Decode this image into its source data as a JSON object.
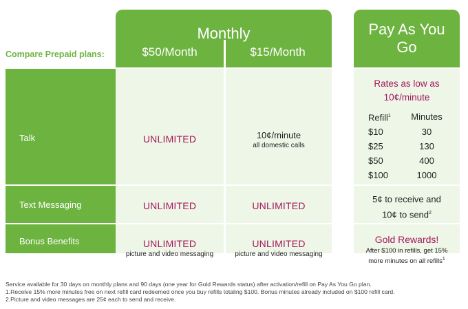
{
  "header": {
    "compare_label": "Compare Prepaid plans:",
    "monthly_title": "Monthly",
    "col_50": "$50/Month",
    "col_15": "$15/Month",
    "payg_title": "Pay As You Go"
  },
  "rows": {
    "talk": "Talk",
    "text": "Text Messaging",
    "bonus": "Bonus Benefits"
  },
  "plan50": {
    "talk": "UNLIMITED",
    "text": "UNLIMITED",
    "bonus": "UNLIMITED",
    "bonus_note": "picture and video messaging"
  },
  "plan15": {
    "talk_rate": "10¢/minute",
    "talk_note": "all domestic calls",
    "text": "UNLIMITED",
    "bonus": "UNLIMITED",
    "bonus_note": "picture and video messaging"
  },
  "payg": {
    "rates_line1": "Rates as low as",
    "rates_line2": "10¢/minute",
    "refill_header": "Refill",
    "refill_sup": "1",
    "minutes_header": "Minutes",
    "rates": [
      {
        "refill": "$10",
        "minutes": "30"
      },
      {
        "refill": "$25",
        "minutes": "130"
      },
      {
        "refill": "$50",
        "minutes": "400"
      },
      {
        "refill": "$100",
        "minutes": "1000"
      }
    ],
    "text_line1": "5¢ to receive and",
    "text_line2": "10¢ to send",
    "text_sup": "2",
    "bonus_title": "Gold Rewards!",
    "bonus_line1": "After $100 in refills, get 15%",
    "bonus_line2": "more minutes on all refills",
    "bonus_sup": "1"
  },
  "footer": {
    "line1": "Service available for 30 days on monthly plans and 90 days (one year for Gold Rewards status) after activation/refill on Pay As You Go plan.",
    "line2": "1.Receive 15% more minutes free on next refill card redeemed once you buy refills totaling $100. Bonus minutes already included on $100 refill card.",
    "line3": "2.Picture and video messages are 25¢ each to send and receive."
  }
}
